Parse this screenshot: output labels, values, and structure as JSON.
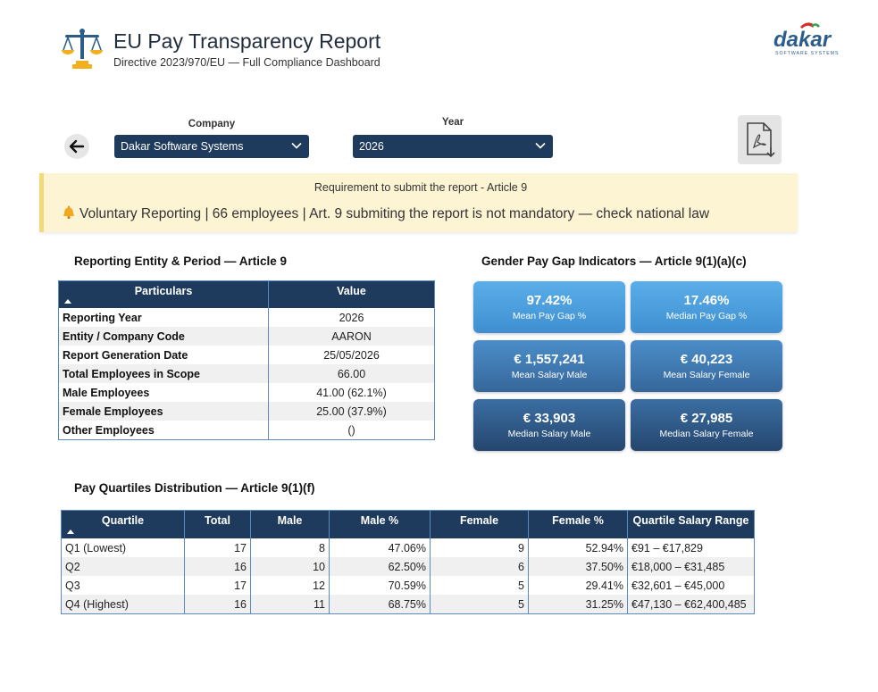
{
  "header": {
    "title": "EU Pay Transparency Report",
    "subtitle": "Directive 2023/970/EU — Full Compliance Dashboard",
    "logo_text": "dakar",
    "logo_tagline": "SOFTWARE SYSTEMS"
  },
  "filters": {
    "company_label": "Company",
    "company_value": "Dakar Software Systems",
    "year_label": "Year",
    "year_value": "2026"
  },
  "banner": {
    "title": "Requirement to submit the report - Article 9",
    "icon": "bell-icon",
    "message": "Voluntary Reporting | 66 employees | Art. 9 submiting the report is not mandatory — check national law"
  },
  "entity": {
    "title": "Reporting Entity & Period — Article 9",
    "headers": [
      "Particulars",
      "Value"
    ],
    "rows": [
      {
        "k": "Reporting Year",
        "v": "2026"
      },
      {
        "k": "Entity / Company Code",
        "v": "AARON"
      },
      {
        "k": "Report Generation Date",
        "v": "25/05/2026"
      },
      {
        "k": "Total Employees in Scope",
        "v": "66.00"
      },
      {
        "k": "Male Employees",
        "v": "41.00 (62.1%)"
      },
      {
        "k": "Female Employees",
        "v": "25.00 (37.9%)"
      },
      {
        "k": "Other Employees",
        "v": "()"
      }
    ]
  },
  "gap": {
    "title": "Gender Pay Gap Indicators — Article 9(1)(a)(c)",
    "cards": {
      "mean_gap": {
        "value": "97.42%",
        "label": "Mean Pay Gap %"
      },
      "median_gap": {
        "value": "17.46%",
        "label": "Median Pay Gap %"
      },
      "mean_male": {
        "value": "€ 1,557,241",
        "label": "Mean Salary Male"
      },
      "mean_female": {
        "value": "€ 40,223",
        "label": "Mean Salary Female"
      },
      "median_male": {
        "value": "€ 33,903",
        "label": "Median Salary Male"
      },
      "median_female": {
        "value": "€ 27,985",
        "label": "Median Salary Female"
      }
    }
  },
  "quartiles": {
    "title": "Pay Quartiles Distribution —  Article 9(1)(f)",
    "headers": [
      "Quartile",
      "Total",
      "Male",
      "Male %",
      "Female",
      "Female %",
      "Quartile Salary Range"
    ],
    "rows": [
      [
        "Q1 (Lowest)",
        "17",
        "8",
        "47.06%",
        "9",
        "52.94%",
        "€91 – €17,829"
      ],
      [
        "Q2",
        "16",
        "10",
        "62.50%",
        "6",
        "37.50%",
        "€18,000 – €31,485"
      ],
      [
        "Q3",
        "17",
        "12",
        "70.59%",
        "5",
        "29.41%",
        "€32,601 – €45,000"
      ],
      [
        "Q4 (Highest)",
        "16",
        "11",
        "68.75%",
        "5",
        "31.25%",
        "€47,130 – €62,400,485"
      ]
    ]
  },
  "colors": {
    "navy": "#1e3a5c",
    "banner_bg": "#fdf4d3",
    "card_light": "#4a9fe0",
    "card_dark": "#2a4e7a"
  }
}
